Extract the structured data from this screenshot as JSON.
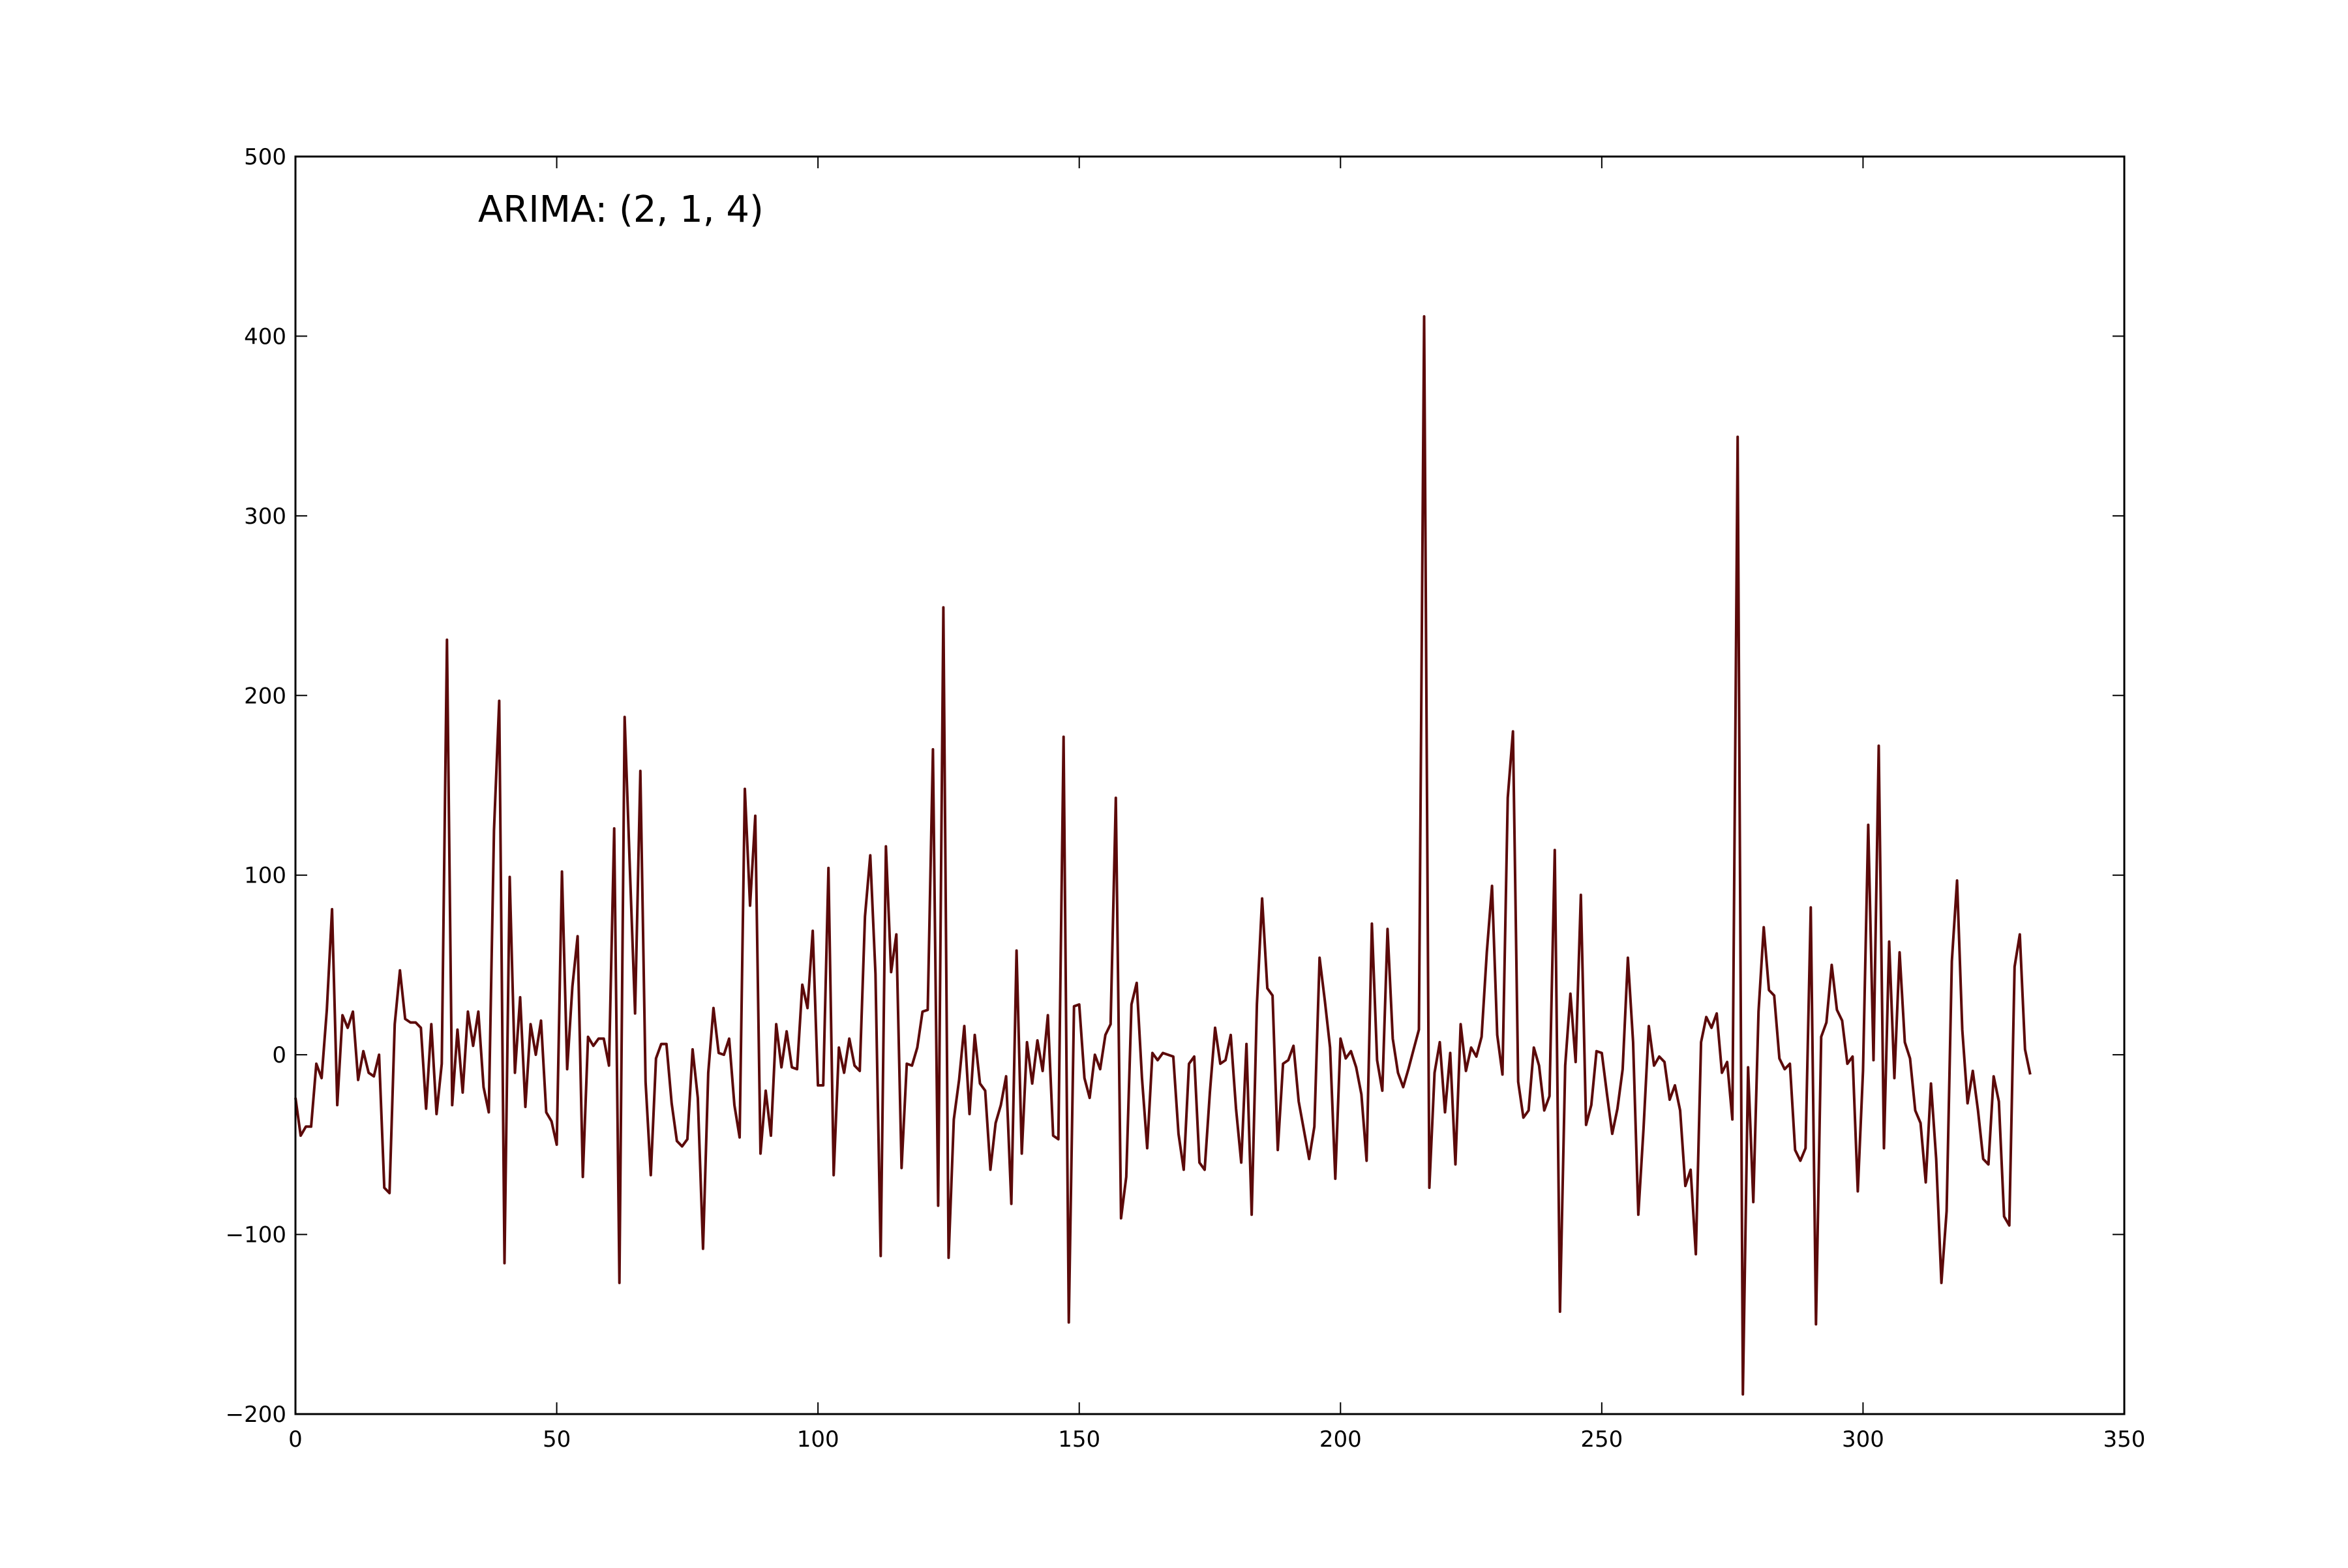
{
  "chart_data": {
    "type": "line",
    "title": "",
    "xlabel": "",
    "ylabel": "",
    "annotation": "ARIMA: (2, 1, 4)",
    "xlim": [
      0,
      350
    ],
    "ylim": [
      -200,
      500
    ],
    "xticks": [
      0,
      50,
      100,
      150,
      200,
      250,
      300,
      350
    ],
    "yticks": [
      -200,
      -100,
      0,
      100,
      200,
      300,
      400,
      500
    ],
    "xtick_labels": [
      "0",
      "50",
      "100",
      "150",
      "200",
      "250",
      "300",
      "350"
    ],
    "ytick_labels": [
      "−200",
      "−100",
      "0",
      "100",
      "200",
      "300",
      "400",
      "500"
    ],
    "grid": false,
    "line_color": "#5c0a0a",
    "series": [
      {
        "x_start": 0,
        "x_step": 1,
        "values": [
          -24,
          -45,
          -40,
          -40,
          -5,
          -13,
          25,
          81,
          -28,
          22,
          15,
          24,
          -14,
          2,
          -10,
          -12,
          0,
          -74,
          -77,
          17,
          47,
          20,
          18,
          18,
          15,
          -30,
          17,
          -33,
          -5,
          231,
          -28,
          14,
          -21,
          24,
          5,
          24,
          -18,
          -32,
          125,
          197,
          -116,
          99,
          -10,
          32,
          -29,
          17,
          0,
          19,
          -32,
          -37,
          -50,
          102,
          -8,
          38,
          66,
          -68,
          10,
          5,
          9,
          9,
          -6,
          126,
          -127,
          188,
          104,
          23,
          158,
          -15,
          -67,
          -2,
          6,
          6,
          -27,
          -48,
          -51,
          -47,
          3,
          -24,
          -108,
          -10,
          26,
          1,
          0,
          9,
          -28,
          -46,
          148,
          83,
          133,
          -55,
          -20,
          -45,
          17,
          -7,
          13,
          -7,
          -8,
          39,
          26,
          69,
          -17,
          -17,
          104,
          -67,
          4,
          -10,
          9,
          -6,
          -9,
          77,
          111,
          45,
          -112,
          116,
          46,
          67,
          -63,
          -5,
          -6,
          4,
          24,
          25,
          170,
          -84,
          249,
          -113,
          -36,
          -14,
          16,
          -33,
          11,
          -16,
          -20,
          -64,
          -38,
          -28,
          -12,
          -83,
          58,
          -55,
          7,
          -16,
          8,
          -9,
          22,
          -45,
          -47,
          177,
          -149,
          27,
          28,
          -13,
          -24,
          0,
          -8,
          11,
          17,
          143,
          -91,
          -68,
          28,
          40,
          -13,
          -52,
          1,
          -3,
          1,
          0,
          -1,
          -44,
          -64,
          -5,
          -1,
          -60,
          -64,
          -21,
          15,
          -5,
          -3,
          11,
          -30,
          -60,
          6,
          -89,
          28,
          87,
          37,
          33,
          -53,
          -5,
          -3,
          5,
          -26,
          -42,
          -58,
          -40,
          54,
          30,
          4,
          -69,
          9,
          -2,
          2,
          -7,
          -22,
          -59,
          73,
          -3,
          -20,
          70,
          9,
          -10,
          -18,
          -8,
          3,
          14,
          411,
          -74,
          -10,
          7,
          -32,
          1,
          -61,
          17,
          -9,
          4,
          -1,
          10,
          57,
          94,
          11,
          -11,
          143,
          180,
          -15,
          -35,
          -31,
          4,
          -6,
          -31,
          -23,
          114,
          -143,
          -6,
          34,
          -4,
          89,
          -39,
          -28,
          2,
          1,
          -22,
          -44,
          -30,
          -8,
          54,
          7,
          -89,
          -41,
          16,
          -6,
          -1,
          -4,
          -25,
          -17,
          -31,
          -73,
          -64,
          -111,
          7,
          21,
          15,
          23,
          -10,
          -4,
          -36,
          344,
          -189,
          -7,
          -82,
          24,
          71,
          36,
          33,
          -2,
          -8,
          -5,
          -53,
          -59,
          -52,
          82,
          -150,
          10,
          18,
          50,
          25,
          19,
          -5,
          -1,
          -76,
          -9,
          128,
          -3,
          172,
          -52,
          63,
          -13,
          57,
          7,
          -2,
          -31,
          -38,
          -71,
          -16,
          -58,
          -127,
          -87,
          52,
          97,
          14,
          -27,
          -9,
          -31,
          -58,
          -61,
          -12,
          -26,
          -90,
          -95,
          49,
          67,
          3,
          -11
        ]
      }
    ]
  }
}
